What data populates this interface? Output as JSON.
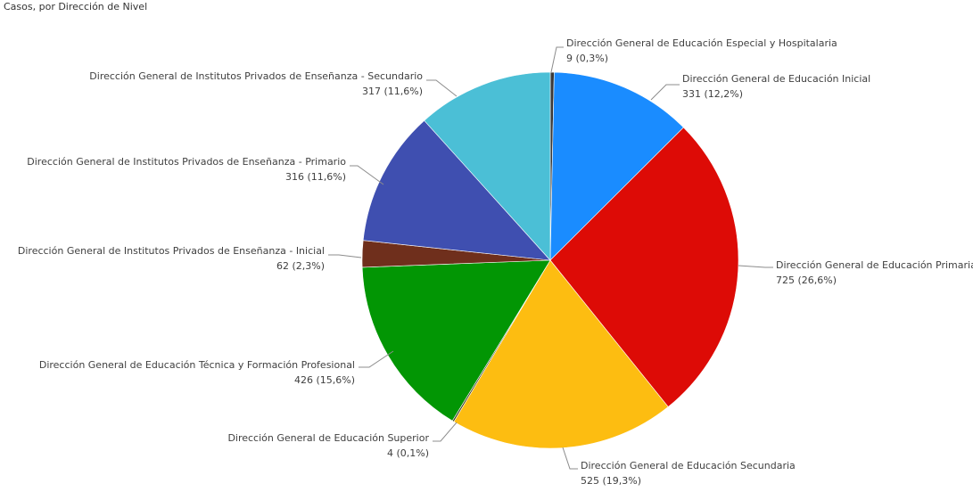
{
  "chart_data": {
    "type": "pie",
    "title": "Casos, por Dirección de Nivel",
    "slices": [
      {
        "name": "Dirección General de Educación Especial y Hospitalaria",
        "value": 9,
        "value_label": "9 (0,3%)",
        "color": "#3a3a3a"
      },
      {
        "name": "Dirección General de Educación Inicial",
        "value": 331,
        "value_label": "331 (12,2%)",
        "color": "#1a8cff"
      },
      {
        "name": "Dirección General de Educación Primaria",
        "value": 725,
        "value_label": "725 (26,6%)",
        "color": "#dd0b06"
      },
      {
        "name": "Dirección General de Educación Secundaria",
        "value": 525,
        "value_label": "525 (19,3%)",
        "color": "#fdbd11"
      },
      {
        "name": "Dirección General de Educación Superior",
        "value": 4,
        "value_label": "4 (0,1%)",
        "color": "#3b3b1a"
      },
      {
        "name": "Dirección General de Educación Técnica y Formación Profesional",
        "value": 426,
        "value_label": "426 (15,6%)",
        "color": "#029604"
      },
      {
        "name": "Dirección General de Institutos Privados de Enseñanza - Inicial",
        "value": 62,
        "value_label": "62 (2,3%)",
        "color": "#6f2f1c"
      },
      {
        "name": "Dirección General de Institutos Privados de Enseñanza - Primario",
        "value": 316,
        "value_label": "316 (11,6%)",
        "color": "#3f4fb0"
      },
      {
        "name": "Dirección General de Institutos Privados de Enseñanza - Secundario",
        "value": 317,
        "value_label": "317 (11,6%)",
        "color": "#4bbfd6"
      }
    ]
  }
}
